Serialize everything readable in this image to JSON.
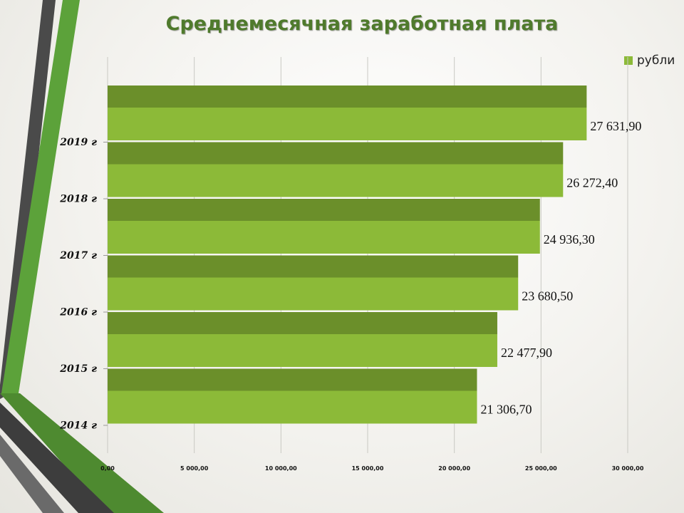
{
  "chart_data": {
    "type": "bar",
    "orientation": "horizontal",
    "title": "Среднемесячная заработная плата",
    "categories": [
      "2019 г",
      "2018 г",
      "2017 г",
      "2016 г",
      "2015 г",
      "2014 г"
    ],
    "series": [
      {
        "name": "рубли",
        "values": [
          27631.9,
          26272.4,
          24936.3,
          23680.5,
          22477.9,
          21306.7
        ]
      }
    ],
    "data_labels": [
      "27 631,90",
      "26 272,40",
      "24 936,30",
      "23 680,50",
      "22 477,90",
      "21 306,70"
    ],
    "x_ticks": [
      0,
      5000,
      10000,
      15000,
      20000,
      25000,
      30000
    ],
    "x_tick_labels": [
      "0,00",
      "5 000,00",
      "10 000,00",
      "15 000,00",
      "20 000,00",
      "25 000,00",
      "30 000,00"
    ],
    "xlim": [
      0,
      30000
    ],
    "xlabel": "",
    "ylabel": "",
    "grid": true,
    "legend_position": "top-right",
    "colors": {
      "bar_light": "#8cba38",
      "bar_dark": "#6b8f2a",
      "title": "#4f7a2c",
      "legend": "#8cba38"
    }
  }
}
